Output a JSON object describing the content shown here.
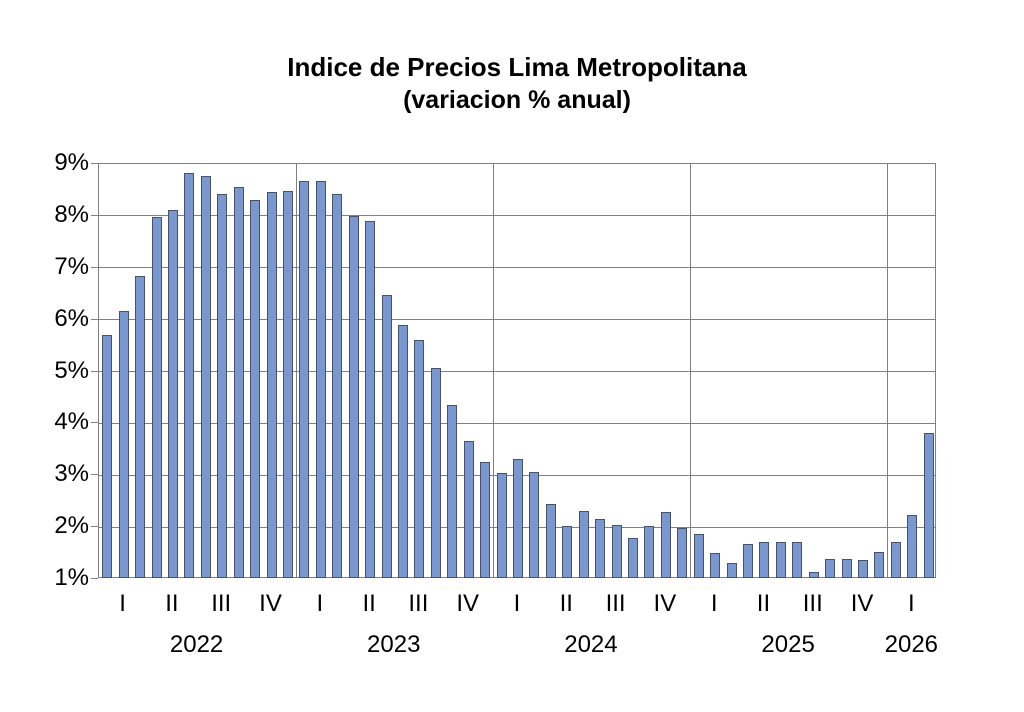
{
  "title": {
    "line1": "Indice de Precios Lima Metropolitana",
    "line2": "(variacion % anual)"
  },
  "chart_data": {
    "type": "bar",
    "title": "Indice de Precios Lima Metropolitana",
    "subtitle": "(variacion % anual)",
    "ylabel": "",
    "xlabel": "",
    "y_axis": {
      "min": 1,
      "max": 9,
      "tick_interval": 1,
      "tick_labels": [
        "9%",
        "8%",
        "7%",
        "6%",
        "5%",
        "4%",
        "3%",
        "2%",
        "1%"
      ],
      "grid": true
    },
    "x_axis": {
      "quarter_labels": [
        "I",
        "II",
        "III",
        "IV",
        "I",
        "II",
        "III",
        "IV",
        "I",
        "II",
        "III",
        "IV",
        "I",
        "II",
        "III",
        "IV",
        "I"
      ],
      "year_grid_boundaries": true
    },
    "years": [
      {
        "label": "2022",
        "quarters": [
          "I",
          "II",
          "III",
          "IV"
        ],
        "values": [
          5.68,
          6.15,
          6.82,
          7.96,
          8.09,
          8.81,
          8.74,
          8.4,
          8.53,
          8.28,
          8.45,
          8.46
        ]
      },
      {
        "label": "2023",
        "quarters": [
          "I",
          "II",
          "III",
          "IV"
        ],
        "values": [
          8.66,
          8.65,
          8.4,
          7.97,
          7.89,
          6.46,
          5.88,
          5.58,
          5.04,
          4.33,
          3.64,
          3.24
        ]
      },
      {
        "label": "2024",
        "quarters": [
          "I",
          "II",
          "III",
          "IV"
        ],
        "values": [
          3.02,
          3.29,
          3.05,
          2.42,
          2.0,
          2.29,
          2.13,
          2.03,
          1.78,
          2.01,
          2.27,
          1.97
        ]
      },
      {
        "label": "2025",
        "quarters": [
          "I",
          "II",
          "III",
          "IV"
        ],
        "values": [
          1.85,
          1.48,
          1.28,
          1.65,
          1.69,
          1.69,
          1.69,
          1.11,
          1.36,
          1.36,
          1.35,
          1.5
        ]
      },
      {
        "label": "2026",
        "quarters": [
          "I"
        ],
        "values": [
          1.7,
          2.21,
          3.8
        ]
      }
    ],
    "bars_per_quarter": 3,
    "legend": {
      "visible": false
    }
  },
  "colors": {
    "background": "#FFFFFF",
    "bar_fill": "#7A97CE",
    "bar_border": "#47536B",
    "gridline": "#808080",
    "axis": "#808080",
    "text": "#000000"
  }
}
